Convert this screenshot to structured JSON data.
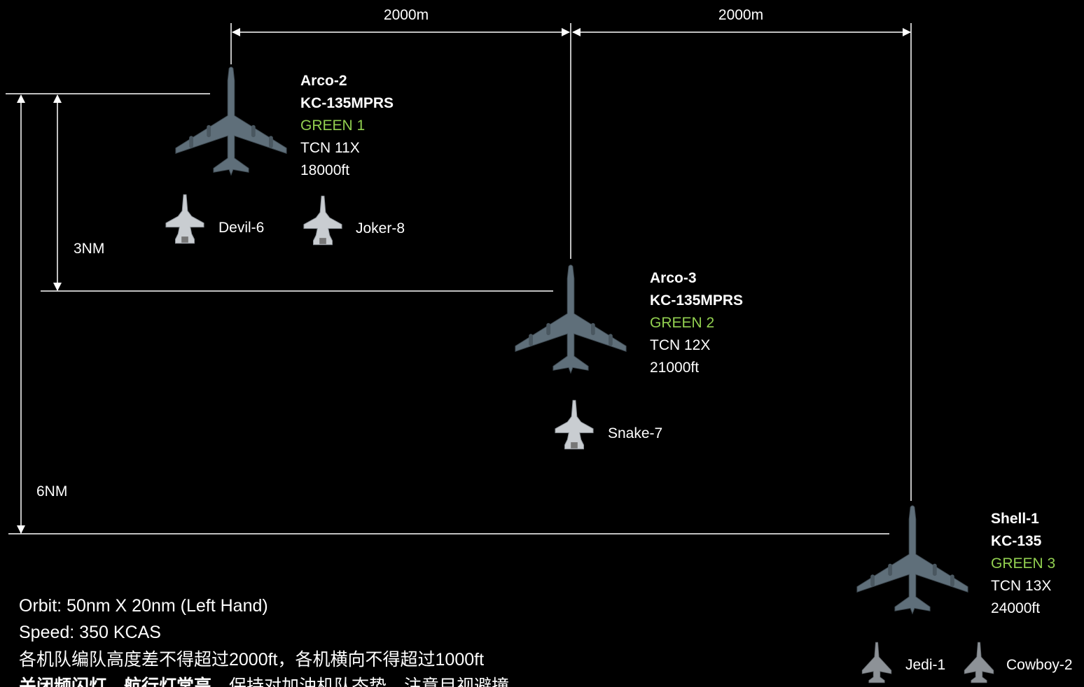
{
  "dimensions": {
    "spacing_left": "2000m",
    "spacing_right": "2000m",
    "short_offset": "3NM",
    "long_offset": "6NM"
  },
  "tankers": [
    {
      "callsign": "Arco-2",
      "type": "KC-135MPRS",
      "channel": "GREEN 1",
      "tacan": "TCN 11X",
      "altitude": "18000ft"
    },
    {
      "callsign": "Arco-3",
      "type": "KC-135MPRS",
      "channel": "GREEN 2",
      "tacan": "TCN 12X",
      "altitude": "21000ft"
    },
    {
      "callsign": "Shell-1",
      "type": "KC-135",
      "channel": "GREEN 3",
      "tacan": "TCN 13X",
      "altitude": "24000ft"
    }
  ],
  "receivers": [
    "Devil-6",
    "Joker-8",
    "Snake-7",
    "Jedi-1",
    "Cowboy-2"
  ],
  "notes": [
    "Orbit: 50nm X 20nm (Left Hand)",
    "Speed: 350 KCAS",
    "各机队编队高度差不得超过2000ft，各机横向不得超过1000ft",
    {
      "bold": "关闭频闪灯，航行灯常亮",
      "text": "，保持对加油机队态势，注意目视避撞"
    }
  ]
}
